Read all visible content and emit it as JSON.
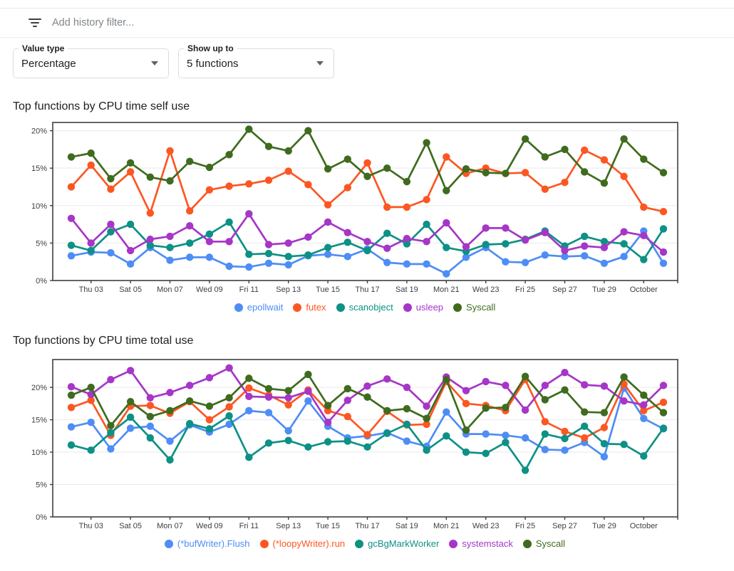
{
  "filter_bar": {
    "icon": "filter-list-icon",
    "placeholder": "Add history filter..."
  },
  "controls": [
    {
      "label": "Value type",
      "value": "Percentage",
      "icon": "arrow-drop-down-icon"
    },
    {
      "label": "Show up to",
      "value": "5 functions",
      "icon": "arrow-drop-down-icon"
    }
  ],
  "colors": {
    "blue": "#4e8df6",
    "orange": "#fc5722",
    "teal": "#0d9185",
    "purple": "#a636c8",
    "green": "#3f6b1e",
    "axis": "#3c4043",
    "grid": "#e9e9e9",
    "divider": "#e8eaed"
  },
  "chart_data": [
    {
      "type": "line",
      "title": "Top functions by CPU time self use",
      "x_tick_labels": [
        "Thu 03",
        "Sat 05",
        "Mon 07",
        "Wed 09",
        "Fri 11",
        "Sep 13",
        "Tue 15",
        "Thu 17",
        "Sat 19",
        "Mon 21",
        "Wed 23",
        "Fri 25",
        "Sep 27",
        "Tue 29",
        "October"
      ],
      "y_tick_labels": [
        "0%",
        "5%",
        "10%",
        "15%",
        "20%"
      ],
      "y_tick_values": [
        0,
        5,
        10,
        15,
        20
      ],
      "ylim": [
        0,
        21.1
      ],
      "grid": true,
      "legend_position": "bottom",
      "series": [
        {
          "name": "epollwait",
          "color_key": "blue",
          "values": [
            3.3,
            3.8,
            3.7,
            2.2,
            4.4,
            2.7,
            3.1,
            3.1,
            1.9,
            1.8,
            2.3,
            2.1,
            3.3,
            3.5,
            3.2,
            4.2,
            2.4,
            2.2,
            2.2,
            0.9,
            3.1,
            4.4,
            2.5,
            2.4,
            3.4,
            3.2,
            3.3,
            2.3,
            3.2,
            6.6,
            2.3
          ]
        },
        {
          "name": "futex",
          "color_key": "orange",
          "values": [
            12.5,
            15.4,
            12.2,
            14.5,
            9.0,
            17.3,
            9.3,
            12.1,
            12.6,
            12.9,
            13.4,
            14.6,
            12.8,
            10.1,
            12.4,
            15.7,
            9.8,
            9.8,
            10.8,
            16.5,
            14.3,
            15.0,
            14.3,
            14.4,
            12.2,
            13.1,
            17.4,
            16.1,
            13.9,
            9.8,
            9.2
          ]
        },
        {
          "name": "scanobject",
          "color_key": "teal",
          "values": [
            4.7,
            4.0,
            6.5,
            7.5,
            4.7,
            4.4,
            5.0,
            6.2,
            7.8,
            3.5,
            3.6,
            3.2,
            3.4,
            4.4,
            5.1,
            4.0,
            6.3,
            4.9,
            7.5,
            4.4,
            3.9,
            4.8,
            4.9,
            5.5,
            6.6,
            4.6,
            5.9,
            5.2,
            4.9,
            2.8,
            6.9
          ]
        },
        {
          "name": "usleep",
          "color_key": "purple",
          "values": [
            8.3,
            5.0,
            7.5,
            4.0,
            5.5,
            5.9,
            7.3,
            5.2,
            5.2,
            8.9,
            4.8,
            5.0,
            5.8,
            7.8,
            6.4,
            5.2,
            4.3,
            5.6,
            5.2,
            7.7,
            4.5,
            7.0,
            7.0,
            5.4,
            6.4,
            4.0,
            4.6,
            4.4,
            6.5,
            6.0,
            3.8
          ]
        },
        {
          "name": "Syscall",
          "color_key": "green",
          "values": [
            16.5,
            17.0,
            13.6,
            15.7,
            13.8,
            13.3,
            15.9,
            15.1,
            16.8,
            20.2,
            17.9,
            17.3,
            20.0,
            14.9,
            16.2,
            13.9,
            15.0,
            13.2,
            18.4,
            12.0,
            14.9,
            14.4,
            14.3,
            18.9,
            16.5,
            17.5,
            14.5,
            13.0,
            18.9,
            16.2,
            14.4
          ]
        }
      ]
    },
    {
      "type": "line",
      "title": "Top functions by CPU time total use",
      "x_tick_labels": [
        "Thu 03",
        "Sat 05",
        "Mon 07",
        "Wed 09",
        "Fri 11",
        "Sep 13",
        "Tue 15",
        "Thu 17",
        "Sat 19",
        "Mon 21",
        "Wed 23",
        "Fri 25",
        "Sep 27",
        "Tue 29",
        "October"
      ],
      "y_tick_labels": [
        "0%",
        "5%",
        "10%",
        "15%",
        "20%"
      ],
      "y_tick_values": [
        0,
        5,
        10,
        15,
        20
      ],
      "ylim": [
        0,
        24.3
      ],
      "grid": true,
      "legend_position": "bottom",
      "series": [
        {
          "name": "(*bufWriter).Flush",
          "color_key": "blue",
          "values": [
            13.9,
            14.6,
            10.5,
            13.7,
            14.0,
            11.7,
            14.2,
            13.1,
            14.3,
            16.4,
            16.1,
            13.3,
            17.9,
            14.0,
            12.2,
            12.5,
            13.0,
            11.7,
            10.9,
            16.2,
            12.8,
            12.8,
            12.6,
            12.2,
            10.4,
            10.3,
            11.5,
            9.3,
            19.9,
            15.2,
            13.6
          ]
        },
        {
          "name": "(*loopyWriter).run",
          "color_key": "orange",
          "values": [
            16.9,
            18.0,
            12.6,
            17.1,
            17.2,
            16.0,
            17.8,
            15.0,
            17.0,
            19.9,
            18.8,
            17.3,
            19.6,
            16.4,
            15.5,
            12.7,
            16.3,
            14.2,
            14.3,
            20.9,
            17.5,
            17.2,
            16.4,
            21.2,
            14.7,
            13.2,
            12.2,
            13.8,
            20.5,
            16.4,
            17.7
          ]
        },
        {
          "name": "gcBgMarkWorker",
          "color_key": "teal",
          "values": [
            11.1,
            10.3,
            13.0,
            15.4,
            12.2,
            8.8,
            14.4,
            13.6,
            15.6,
            9.2,
            11.4,
            11.8,
            10.8,
            11.6,
            11.7,
            10.8,
            12.9,
            14.3,
            10.3,
            12.5,
            10.0,
            9.8,
            11.5,
            7.2,
            12.8,
            12.1,
            14.0,
            11.3,
            11.2,
            9.4,
            13.7
          ]
        },
        {
          "name": "systemstack",
          "color_key": "purple",
          "values": [
            20.1,
            18.9,
            21.2,
            22.6,
            18.4,
            19.2,
            20.3,
            21.5,
            23.0,
            18.6,
            18.5,
            18.4,
            19.4,
            14.6,
            18.0,
            20.2,
            21.3,
            20.0,
            17.1,
            21.6,
            19.5,
            20.9,
            20.3,
            16.5,
            20.3,
            22.3,
            20.4,
            20.2,
            17.9,
            17.3,
            20.3
          ]
        },
        {
          "name": "Syscall",
          "color_key": "green",
          "values": [
            18.8,
            20.0,
            14.1,
            17.8,
            15.5,
            16.4,
            17.9,
            17.1,
            18.4,
            21.4,
            19.8,
            19.5,
            22.0,
            17.2,
            19.8,
            18.5,
            16.4,
            16.7,
            15.2,
            21.2,
            13.4,
            16.8,
            16.9,
            21.7,
            18.1,
            19.6,
            16.2,
            16.1,
            21.6,
            18.8,
            16.1
          ]
        }
      ]
    }
  ]
}
